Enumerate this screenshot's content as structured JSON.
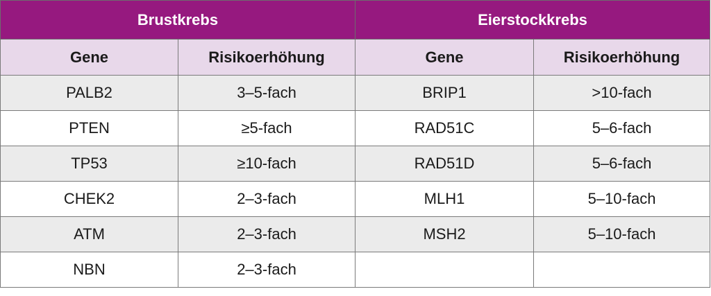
{
  "groups": {
    "breast": "Brustkrebs",
    "ovarian": "Eierstockkrebs"
  },
  "headers": {
    "gene": "Gene",
    "risk": "Risikoerhöhung"
  },
  "rows": [
    {
      "b_gene": "PALB2",
      "b_risk": "3–5-fach",
      "o_gene": "BRIP1",
      "o_risk": ">10-fach"
    },
    {
      "b_gene": "PTEN",
      "b_risk": "≥5-fach",
      "o_gene": "RAD51C",
      "o_risk": "5–6-fach"
    },
    {
      "b_gene": "TP53",
      "b_risk": "≥10-fach",
      "o_gene": "RAD51D",
      "o_risk": "5–6-fach"
    },
    {
      "b_gene": "CHEK2",
      "b_risk": "2–3-fach",
      "o_gene": "MLH1",
      "o_risk": "5–10-fach"
    },
    {
      "b_gene": "ATM",
      "b_risk": "2–3-fach",
      "o_gene": "MSH2",
      "o_risk": "5–10-fach"
    },
    {
      "b_gene": "NBN",
      "b_risk": "2–3-fach",
      "o_gene": "",
      "o_risk": ""
    }
  ],
  "colors": {
    "header_bg": "#96197f",
    "subheader_bg": "#e8d8ea",
    "stripe_bg": "#ebebeb"
  }
}
